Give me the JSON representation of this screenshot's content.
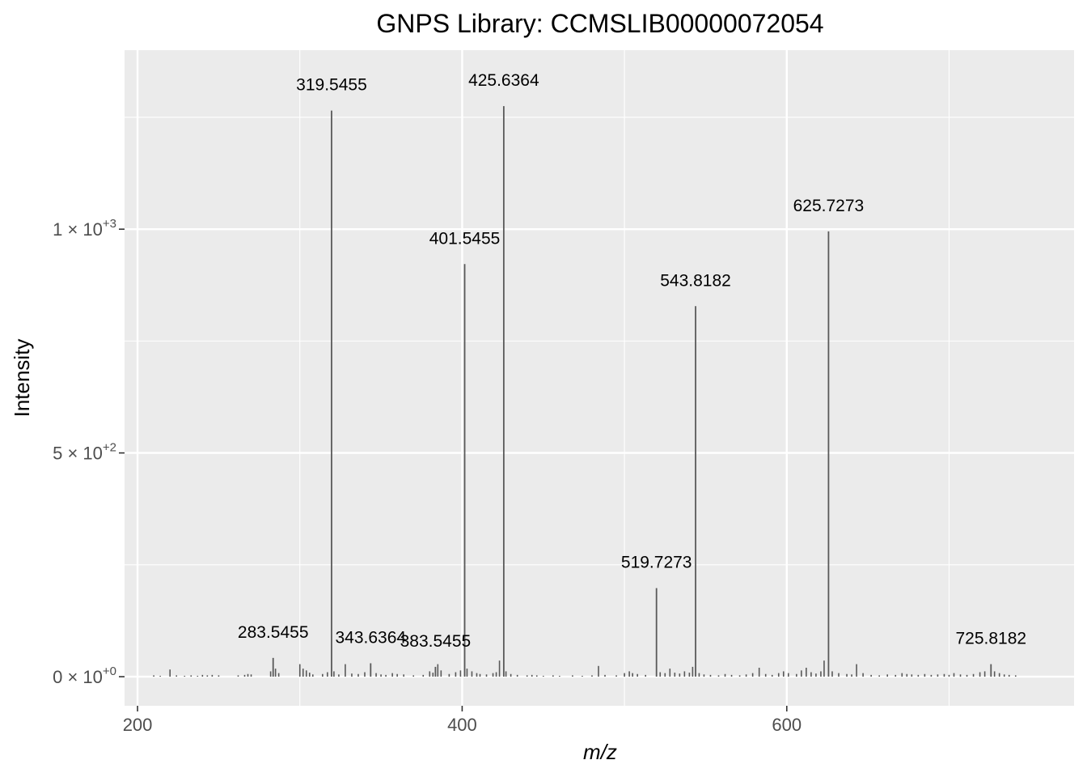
{
  "chart_data": {
    "type": "bar",
    "title": "GNPS Library: CCMSLIB00000072054",
    "xlabel": "m/z",
    "ylabel": "Intensity",
    "xlim": [
      192,
      777
    ],
    "ylim": [
      -65,
      1400
    ],
    "x_ticks": [
      {
        "value": 200,
        "label": "200"
      },
      {
        "value": 400,
        "label": "400"
      },
      {
        "value": 600,
        "label": "600"
      }
    ],
    "y_ticks": [
      {
        "value": 0,
        "mantissa": "0 × 10",
        "exponent": "+0"
      },
      {
        "value": 500,
        "mantissa": "5 × 10",
        "exponent": "+2"
      },
      {
        "value": 1000,
        "mantissa": "1 × 10",
        "exponent": "+3"
      }
    ],
    "grid": true,
    "background": "#ebebeb",
    "bar_color": "#595959",
    "labeled_peaks": [
      {
        "mz": 283.5455,
        "intensity": 42,
        "label": "283.5455"
      },
      {
        "mz": 319.5455,
        "intensity": 1265,
        "label": "319.5455"
      },
      {
        "mz": 343.6364,
        "intensity": 30,
        "label": "343.6364"
      },
      {
        "mz": 383.5455,
        "intensity": 22,
        "label": "383.5455"
      },
      {
        "mz": 401.5455,
        "intensity": 922,
        "label": "401.5455"
      },
      {
        "mz": 425.6364,
        "intensity": 1275,
        "label": "425.6364"
      },
      {
        "mz": 519.7273,
        "intensity": 198,
        "label": "519.7273"
      },
      {
        "mz": 543.8182,
        "intensity": 828,
        "label": "543.8182"
      },
      {
        "mz": 625.7273,
        "intensity": 995,
        "label": "625.7273"
      },
      {
        "mz": 725.8182,
        "intensity": 28,
        "label": "725.8182"
      }
    ],
    "minor_peaks": [
      [
        210,
        3
      ],
      [
        214,
        2
      ],
      [
        220,
        16
      ],
      [
        224,
        3
      ],
      [
        229,
        2
      ],
      [
        233,
        3
      ],
      [
        237,
        2
      ],
      [
        240,
        4
      ],
      [
        243,
        3
      ],
      [
        246,
        4
      ],
      [
        250,
        3
      ],
      [
        262,
        3
      ],
      [
        266,
        4
      ],
      [
        268,
        6
      ],
      [
        270,
        5
      ],
      [
        282,
        12
      ],
      [
        285,
        18
      ],
      [
        287,
        8
      ],
      [
        300,
        28
      ],
      [
        302,
        18
      ],
      [
        304,
        14
      ],
      [
        306,
        9
      ],
      [
        308,
        5
      ],
      [
        314,
        6
      ],
      [
        317,
        10
      ],
      [
        321,
        12
      ],
      [
        324,
        5
      ],
      [
        328,
        28
      ],
      [
        332,
        7
      ],
      [
        336,
        6
      ],
      [
        340,
        10
      ],
      [
        347,
        8
      ],
      [
        350,
        5
      ],
      [
        353,
        4
      ],
      [
        357,
        8
      ],
      [
        360,
        6
      ],
      [
        364,
        5
      ],
      [
        370,
        3
      ],
      [
        376,
        4
      ],
      [
        380,
        12
      ],
      [
        382,
        9
      ],
      [
        385,
        28
      ],
      [
        387,
        14
      ],
      [
        392,
        6
      ],
      [
        396,
        10
      ],
      [
        399,
        14
      ],
      [
        403,
        18
      ],
      [
        406,
        12
      ],
      [
        409,
        8
      ],
      [
        411,
        6
      ],
      [
        415,
        5
      ],
      [
        419,
        8
      ],
      [
        421,
        10
      ],
      [
        423,
        36
      ],
      [
        427,
        12
      ],
      [
        430,
        6
      ],
      [
        434,
        4
      ],
      [
        440,
        3
      ],
      [
        443,
        4
      ],
      [
        446,
        3
      ],
      [
        450,
        2
      ],
      [
        456,
        3
      ],
      [
        460,
        2
      ],
      [
        468,
        3
      ],
      [
        474,
        2
      ],
      [
        480,
        3
      ],
      [
        484,
        24
      ],
      [
        488,
        4
      ],
      [
        495,
        3
      ],
      [
        500,
        8
      ],
      [
        503,
        12
      ],
      [
        505,
        8
      ],
      [
        508,
        6
      ],
      [
        513,
        4
      ],
      [
        522,
        10
      ],
      [
        525,
        8
      ],
      [
        528,
        18
      ],
      [
        531,
        9
      ],
      [
        534,
        7
      ],
      [
        537,
        12
      ],
      [
        540,
        9
      ],
      [
        542,
        22
      ],
      [
        546,
        8
      ],
      [
        549,
        5
      ],
      [
        553,
        4
      ],
      [
        558,
        3
      ],
      [
        562,
        6
      ],
      [
        566,
        4
      ],
      [
        571,
        3
      ],
      [
        575,
        5
      ],
      [
        579,
        8
      ],
      [
        583,
        20
      ],
      [
        587,
        6
      ],
      [
        591,
        4
      ],
      [
        595,
        8
      ],
      [
        598,
        12
      ],
      [
        601,
        8
      ],
      [
        606,
        6
      ],
      [
        609,
        14
      ],
      [
        612,
        20
      ],
      [
        615,
        10
      ],
      [
        618,
        7
      ],
      [
        621,
        12
      ],
      [
        623,
        36
      ],
      [
        628,
        12
      ],
      [
        632,
        8
      ],
      [
        637,
        6
      ],
      [
        640,
        5
      ],
      [
        643,
        28
      ],
      [
        647,
        8
      ],
      [
        652,
        4
      ],
      [
        657,
        3
      ],
      [
        662,
        5
      ],
      [
        667,
        4
      ],
      [
        671,
        8
      ],
      [
        674,
        6
      ],
      [
        677,
        5
      ],
      [
        681,
        4
      ],
      [
        685,
        6
      ],
      [
        689,
        4
      ],
      [
        693,
        5
      ],
      [
        697,
        6
      ],
      [
        700,
        4
      ],
      [
        703,
        8
      ],
      [
        707,
        5
      ],
      [
        711,
        4
      ],
      [
        715,
        6
      ],
      [
        719,
        10
      ],
      [
        722,
        12
      ],
      [
        728,
        12
      ],
      [
        731,
        8
      ],
      [
        734,
        5
      ],
      [
        737,
        4
      ],
      [
        741,
        3
      ]
    ]
  }
}
